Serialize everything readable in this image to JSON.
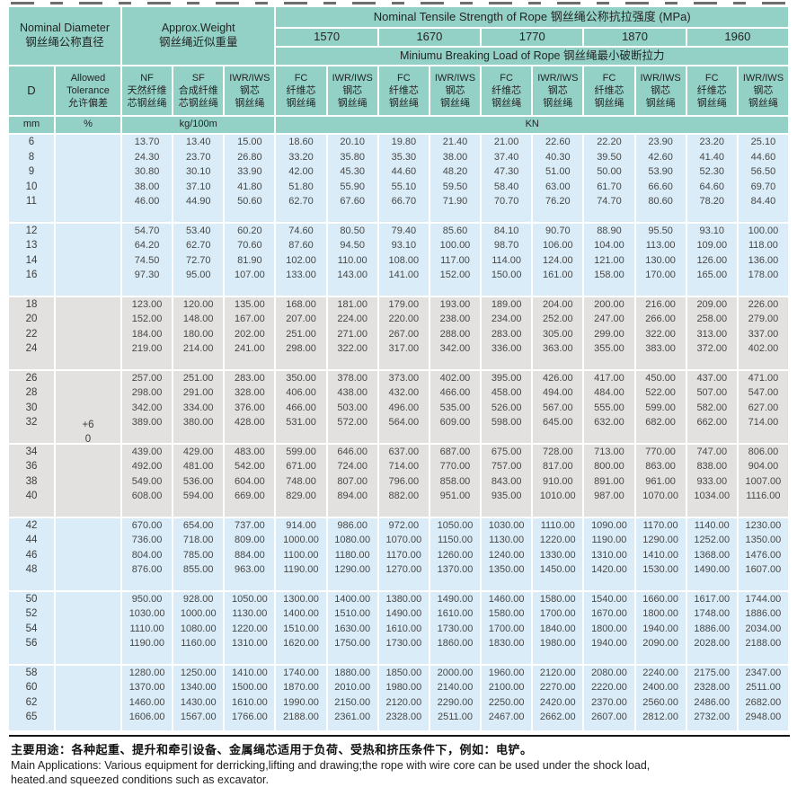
{
  "colors": {
    "header_teal": "#93d1c7",
    "band_blue": "#d9ecf7",
    "band_gray": "#e2e1e0"
  },
  "table": {
    "header": {
      "nominal_diameter": "Nominal Diameter\n钢丝绳公称直径",
      "approx_weight": "Approx.Weight\n钢丝绳近似重量",
      "tensile_strength": "Nominal Tensile Strength of Rope 钢丝绳公称抗拉强度 (MPa)",
      "strength_grades": [
        "1570",
        "1670",
        "1770",
        "1870",
        "1960"
      ],
      "breaking_load": "Miniumu Breaking Load of Rope 钢丝绳最小破断拉力",
      "col_d": "D",
      "col_tolerance": "Allowed\nTolerance\n允许偏差",
      "col_nf": "NF\n天然纤维\n芯钢丝绳",
      "col_sf": "SF\n合成纤维\n芯钢丝绳",
      "col_iwr_weight": "IWR/IWS\n钢芯\n钢丝绳",
      "col_fc": "FC\n纤维芯\n钢丝绳",
      "col_iwr": "IWR/IWS\n钢芯\n钢丝绳",
      "unit_mm": "mm",
      "unit_percent": "%",
      "unit_kg": "kg/100m",
      "unit_kn": "KN"
    },
    "tolerance": {
      "plus": "+6",
      "zero": "0"
    },
    "groups": [
      {
        "band": "blue",
        "rows": [
          {
            "d": "6",
            "values": [
              "13.70",
              "13.40",
              "15.00",
              "18.60",
              "20.10",
              "19.80",
              "21.40",
              "21.00",
              "22.60",
              "22.20",
              "23.90",
              "23.20",
              "25.10"
            ]
          },
          {
            "d": "8",
            "values": [
              "24.30",
              "23.70",
              "26.80",
              "33.20",
              "35.80",
              "35.30",
              "38.00",
              "37.40",
              "40.30",
              "39.50",
              "42.60",
              "41.40",
              "44.60"
            ]
          },
          {
            "d": "9",
            "values": [
              "30.80",
              "30.10",
              "33.90",
              "42.00",
              "45.30",
              "44.60",
              "48.20",
              "47.30",
              "51.00",
              "50.00",
              "53.90",
              "52.30",
              "56.50"
            ]
          },
          {
            "d": "10",
            "values": [
              "38.00",
              "37.10",
              "41.80",
              "51.80",
              "55.90",
              "55.10",
              "59.50",
              "58.40",
              "63.00",
              "61.70",
              "66.60",
              "64.60",
              "69.70"
            ]
          },
          {
            "d": "11",
            "values": [
              "46.00",
              "44.90",
              "50.60",
              "62.70",
              "67.60",
              "66.70",
              "71.90",
              "70.70",
              "76.20",
              "74.70",
              "80.60",
              "78.20",
              "84.40"
            ]
          }
        ]
      },
      {
        "band": "blue",
        "rows": [
          {
            "d": "12",
            "values": [
              "54.70",
              "53.40",
              "60.20",
              "74.60",
              "80.50",
              "79.40",
              "85.60",
              "84.10",
              "90.70",
              "88.90",
              "95.50",
              "93.10",
              "100.00"
            ]
          },
          {
            "d": "13",
            "values": [
              "64.20",
              "62.70",
              "70.60",
              "87.60",
              "94.50",
              "93.10",
              "100.00",
              "98.70",
              "106.00",
              "104.00",
              "113.00",
              "109.00",
              "118.00"
            ]
          },
          {
            "d": "14",
            "values": [
              "74.50",
              "72.70",
              "81.90",
              "102.00",
              "110.00",
              "108.00",
              "117.00",
              "114.00",
              "124.00",
              "121.00",
              "130.00",
              "126.00",
              "136.00"
            ]
          },
          {
            "d": "16",
            "values": [
              "97.30",
              "95.00",
              "107.00",
              "133.00",
              "143.00",
              "141.00",
              "152.00",
              "150.00",
              "161.00",
              "158.00",
              "170.00",
              "165.00",
              "178.00"
            ]
          }
        ]
      },
      {
        "band": "gray",
        "rows": [
          {
            "d": "18",
            "values": [
              "123.00",
              "120.00",
              "135.00",
              "168.00",
              "181.00",
              "179.00",
              "193.00",
              "189.00",
              "204.00",
              "200.00",
              "216.00",
              "209.00",
              "226.00"
            ]
          },
          {
            "d": "20",
            "values": [
              "152.00",
              "148.00",
              "167.00",
              "207.00",
              "224.00",
              "220.00",
              "238.00",
              "234.00",
              "252.00",
              "247.00",
              "266.00",
              "258.00",
              "279.00"
            ]
          },
          {
            "d": "22",
            "values": [
              "184.00",
              "180.00",
              "202.00",
              "251.00",
              "271.00",
              "267.00",
              "288.00",
              "283.00",
              "305.00",
              "299.00",
              "322.00",
              "313.00",
              "337.00"
            ]
          },
          {
            "d": "24",
            "values": [
              "219.00",
              "214.00",
              "241.00",
              "298.00",
              "322.00",
              "317.00",
              "342.00",
              "336.00",
              "363.00",
              "355.00",
              "383.00",
              "372.00",
              "402.00"
            ]
          }
        ]
      },
      {
        "band": "gray",
        "rows": [
          {
            "d": "26",
            "values": [
              "257.00",
              "251.00",
              "283.00",
              "350.00",
              "378.00",
              "373.00",
              "402.00",
              "395.00",
              "426.00",
              "417.00",
              "450.00",
              "437.00",
              "471.00"
            ]
          },
          {
            "d": "28",
            "values": [
              "298.00",
              "291.00",
              "328.00",
              "406.00",
              "438.00",
              "432.00",
              "466.00",
              "458.00",
              "494.00",
              "484.00",
              "522.00",
              "507.00",
              "547.00"
            ]
          },
          {
            "d": "30",
            "values": [
              "342.00",
              "334.00",
              "376.00",
              "466.00",
              "503.00",
              "496.00",
              "535.00",
              "526.00",
              "567.00",
              "555.00",
              "599.00",
              "582.00",
              "627.00"
            ]
          },
          {
            "d": "32",
            "values": [
              "389.00",
              "380.00",
              "428.00",
              "531.00",
              "572.00",
              "564.00",
              "609.00",
              "598.00",
              "645.00",
              "632.00",
              "682.00",
              "662.00",
              "714.00"
            ]
          }
        ]
      },
      {
        "band": "gray",
        "rows": [
          {
            "d": "34",
            "values": [
              "439.00",
              "429.00",
              "483.00",
              "599.00",
              "646.00",
              "637.00",
              "687.00",
              "675.00",
              "728.00",
              "713.00",
              "770.00",
              "747.00",
              "806.00"
            ]
          },
          {
            "d": "36",
            "values": [
              "492.00",
              "481.00",
              "542.00",
              "671.00",
              "724.00",
              "714.00",
              "770.00",
              "757.00",
              "817.00",
              "800.00",
              "863.00",
              "838.00",
              "904.00"
            ]
          },
          {
            "d": "38",
            "values": [
              "549.00",
              "536.00",
              "604.00",
              "748.00",
              "807.00",
              "796.00",
              "858.00",
              "843.00",
              "910.00",
              "891.00",
              "961.00",
              "933.00",
              "1007.00"
            ]
          },
          {
            "d": "40",
            "values": [
              "608.00",
              "594.00",
              "669.00",
              "829.00",
              "894.00",
              "882.00",
              "951.00",
              "935.00",
              "1010.00",
              "987.00",
              "1070.00",
              "1034.00",
              "1116.00"
            ]
          }
        ]
      },
      {
        "band": "blue",
        "rows": [
          {
            "d": "42",
            "values": [
              "670.00",
              "654.00",
              "737.00",
              "914.00",
              "986.00",
              "972.00",
              "1050.00",
              "1030.00",
              "1110.00",
              "1090.00",
              "1170.00",
              "1140.00",
              "1230.00"
            ]
          },
          {
            "d": "44",
            "values": [
              "736.00",
              "718.00",
              "809.00",
              "1000.00",
              "1080.00",
              "1070.00",
              "1150.00",
              "1130.00",
              "1220.00",
              "1190.00",
              "1290.00",
              "1252.00",
              "1350.00"
            ]
          },
          {
            "d": "46",
            "values": [
              "804.00",
              "785.00",
              "884.00",
              "1100.00",
              "1180.00",
              "1170.00",
              "1260.00",
              "1240.00",
              "1330.00",
              "1310.00",
              "1410.00",
              "1368.00",
              "1476.00"
            ]
          },
          {
            "d": "48",
            "values": [
              "876.00",
              "855.00",
              "963.00",
              "1190.00",
              "1290.00",
              "1270.00",
              "1370.00",
              "1350.00",
              "1450.00",
              "1420.00",
              "1530.00",
              "1490.00",
              "1607.00"
            ]
          }
        ]
      },
      {
        "band": "blue",
        "rows": [
          {
            "d": "50",
            "values": [
              "950.00",
              "928.00",
              "1050.00",
              "1300.00",
              "1400.00",
              "1380.00",
              "1490.00",
              "1460.00",
              "1580.00",
              "1540.00",
              "1660.00",
              "1617.00",
              "1744.00"
            ]
          },
          {
            "d": "52",
            "values": [
              "1030.00",
              "1000.00",
              "1130.00",
              "1400.00",
              "1510.00",
              "1490.00",
              "1610.00",
              "1580.00",
              "1700.00",
              "1670.00",
              "1800.00",
              "1748.00",
              "1886.00"
            ]
          },
          {
            "d": "54",
            "values": [
              "1110.00",
              "1080.00",
              "1220.00",
              "1510.00",
              "1630.00",
              "1610.00",
              "1730.00",
              "1700.00",
              "1840.00",
              "1800.00",
              "1940.00",
              "1886.00",
              "2034.00"
            ]
          },
          {
            "d": "56",
            "values": [
              "1190.00",
              "1160.00",
              "1310.00",
              "1620.00",
              "1750.00",
              "1730.00",
              "1860.00",
              "1830.00",
              "1980.00",
              "1940.00",
              "2090.00",
              "2028.00",
              "2188.00"
            ]
          }
        ]
      },
      {
        "band": "blue",
        "rows": [
          {
            "d": "58",
            "values": [
              "1280.00",
              "1250.00",
              "1410.00",
              "1740.00",
              "1880.00",
              "1850.00",
              "2000.00",
              "1960.00",
              "2120.00",
              "2080.00",
              "2240.00",
              "2175.00",
              "2347.00"
            ]
          },
          {
            "d": "60",
            "values": [
              "1370.00",
              "1340.00",
              "1500.00",
              "1870.00",
              "2010.00",
              "1980.00",
              "2140.00",
              "2100.00",
              "2270.00",
              "2220.00",
              "2400.00",
              "2328.00",
              "2511.00"
            ]
          },
          {
            "d": "62",
            "values": [
              "1460.00",
              "1430.00",
              "1610.00",
              "1990.00",
              "2150.00",
              "2120.00",
              "2290.00",
              "2250.00",
              "2420.00",
              "2370.00",
              "2560.00",
              "2486.00",
              "2682.00"
            ]
          },
          {
            "d": "65",
            "values": [
              "1606.00",
              "1567.00",
              "1766.00",
              "2188.00",
              "2361.00",
              "2328.00",
              "2511.00",
              "2467.00",
              "2662.00",
              "2607.00",
              "2812.00",
              "2732.00",
              "2948.00"
            ]
          }
        ]
      }
    ]
  },
  "footer": {
    "cn": "主要用途：各种起重、提升和牵引设备、金属绳芯适用于负荷、受热和挤压条件下，例如：电铲。",
    "en_line1": "Main Applications: Various equipment for derricking,lifting and drawing;the rope with wire core can be used under the shock load,",
    "en_line2": "heated.and squeezed conditions such as excavator."
  }
}
